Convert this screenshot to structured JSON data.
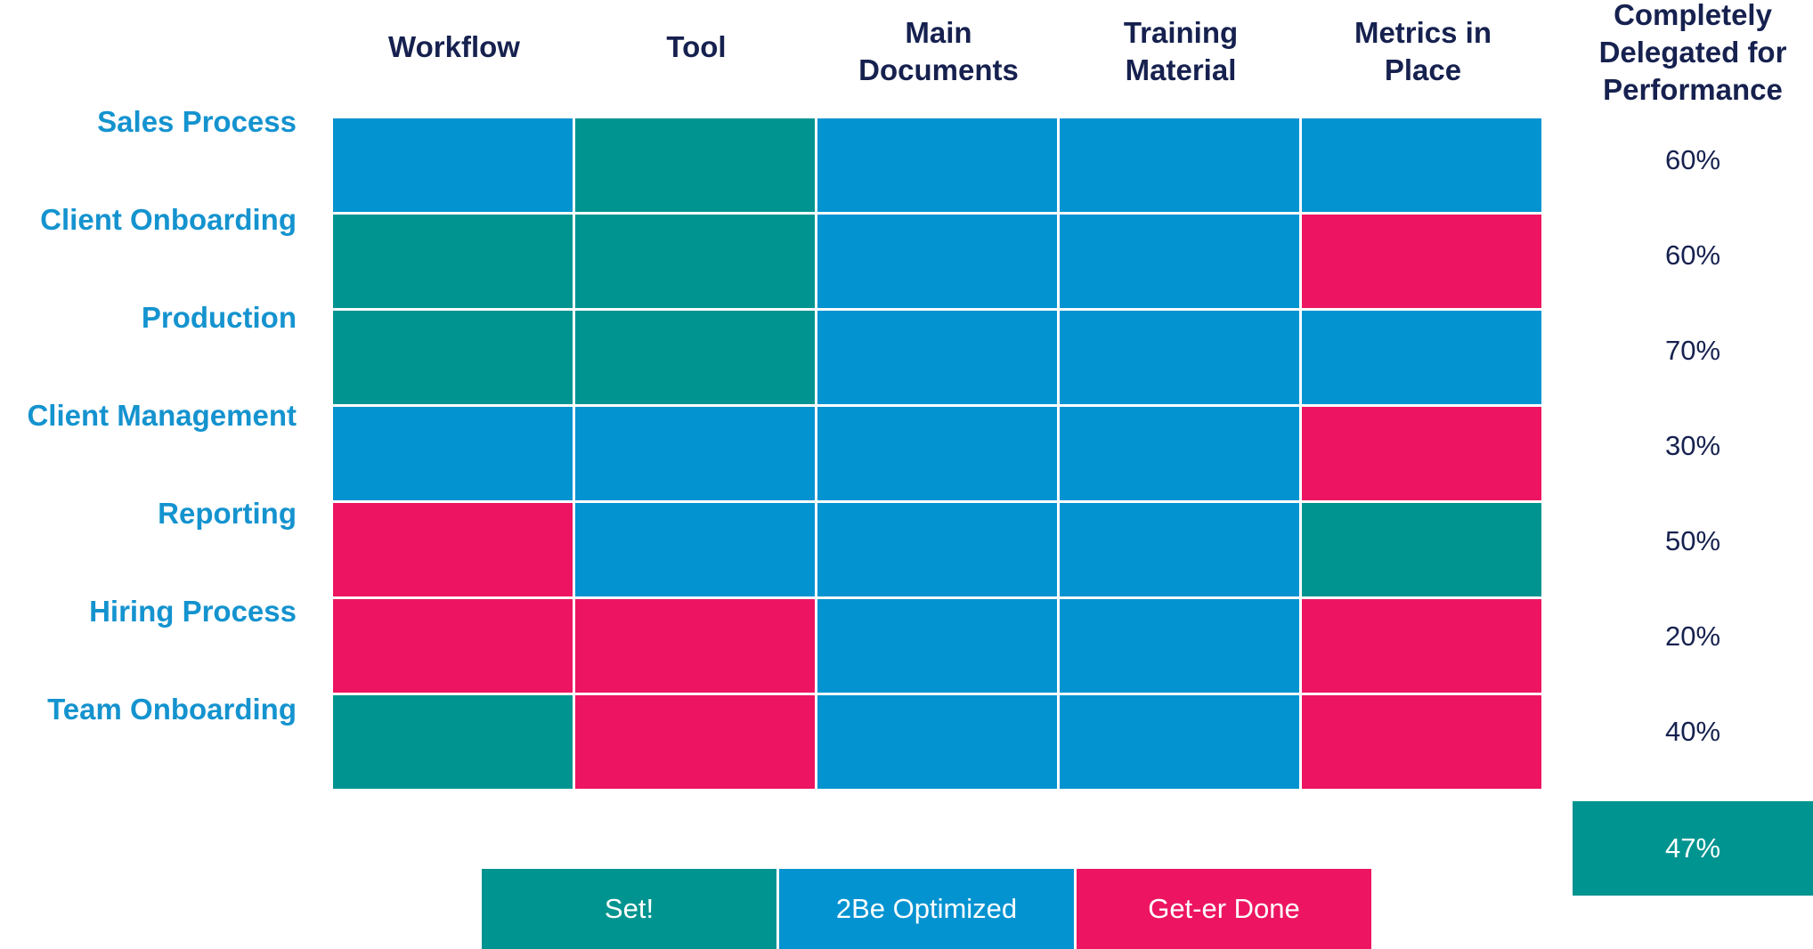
{
  "chart_data": {
    "type": "heatmap",
    "columns": [
      "Workflow",
      "Tool",
      "Main Documents",
      "Training Material",
      "Metrics in Place"
    ],
    "summary_column": "Completely Delegated for Performance",
    "rows": [
      {
        "label": "Sales Process",
        "statuses": [
          "2Be Optimized",
          "Set!",
          "2Be Optimized",
          "2Be Optimized",
          "2Be Optimized"
        ],
        "percent": "60%"
      },
      {
        "label": "Client Onboarding",
        "statuses": [
          "Set!",
          "Set!",
          "2Be Optimized",
          "2Be Optimized",
          "Get-er Done"
        ],
        "percent": "60%"
      },
      {
        "label": "Production",
        "statuses": [
          "Set!",
          "Set!",
          "2Be Optimized",
          "2Be Optimized",
          "2Be Optimized"
        ],
        "percent": "70%"
      },
      {
        "label": "Client Management",
        "statuses": [
          "2Be Optimized",
          "2Be Optimized",
          "2Be Optimized",
          "2Be Optimized",
          "Get-er Done"
        ],
        "percent": "30%"
      },
      {
        "label": "Reporting",
        "statuses": [
          "Get-er Done",
          "2Be Optimized",
          "2Be Optimized",
          "2Be Optimized",
          "Set!"
        ],
        "percent": "50%"
      },
      {
        "label": "Hiring Process",
        "statuses": [
          "Get-er Done",
          "Get-er Done",
          "2Be Optimized",
          "2Be Optimized",
          "Get-er Done"
        ],
        "percent": "20%"
      },
      {
        "label": "Team Onboarding",
        "statuses": [
          "Set!",
          "Get-er Done",
          "2Be Optimized",
          "2Be Optimized",
          "Get-er Done"
        ],
        "percent": "40%"
      }
    ],
    "total_percent": "47%",
    "legend": [
      {
        "label": "Set!",
        "color": "#009490"
      },
      {
        "label": "2Be Optimized",
        "color": "#0493d1"
      },
      {
        "label": "Get-er Done",
        "color": "#ed1561"
      }
    ]
  }
}
